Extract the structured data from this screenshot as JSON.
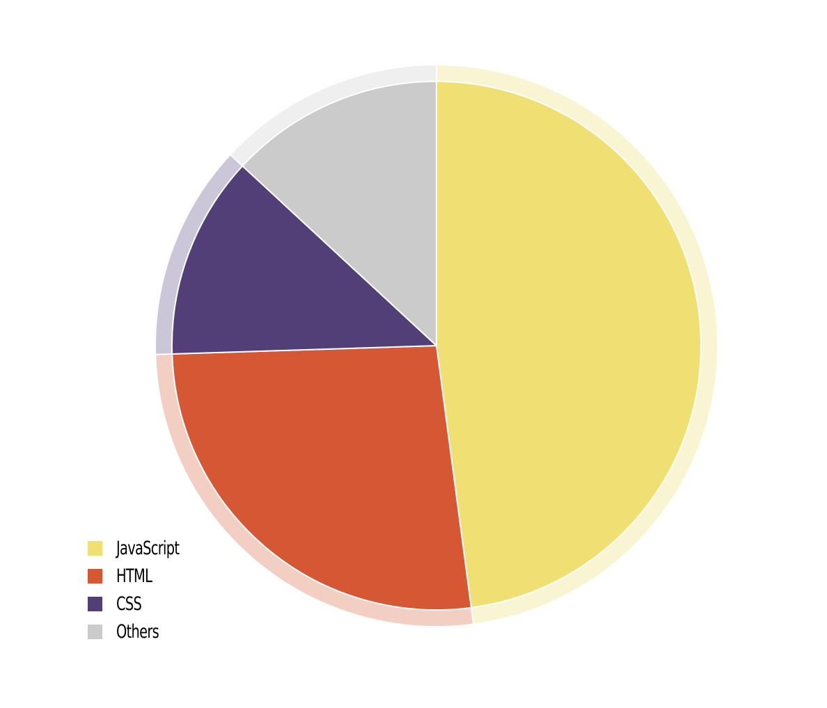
{
  "chart_data": {
    "type": "pie",
    "title": "",
    "categories": [
      "JavaScript",
      "HTML",
      "CSS",
      "Others"
    ],
    "values": [
      47.9,
      26.6,
      12.4,
      13.1
    ],
    "colors": [
      "#f0df72",
      "#d65733",
      "#523f78",
      "#cbcbcb"
    ],
    "halo_colors": [
      "#f9f4d2",
      "#f3cec3",
      "#cbc6d8",
      "#efefef"
    ],
    "start_angle_deg": 0,
    "direction": "clockwise",
    "legend_position": "bottom-left"
  },
  "legend": {
    "items": [
      {
        "label": "JavaScript",
        "color": "#f0df72"
      },
      {
        "label": "HTML",
        "color": "#d65733"
      },
      {
        "label": "CSS",
        "color": "#523f78"
      },
      {
        "label": "Others",
        "color": "#cbcbcb"
      }
    ]
  }
}
